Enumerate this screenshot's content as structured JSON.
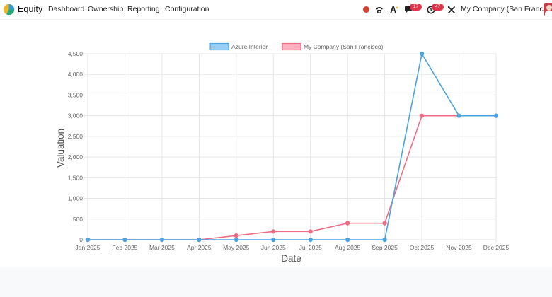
{
  "navbar": {
    "app_name": "Equity",
    "menu": [
      "Dashboard",
      "Ownership",
      "Reporting",
      "Configuration"
    ],
    "messages_badge": "17",
    "activities_badge": "47",
    "company": "My Company (San Francisco)"
  },
  "chart_data": {
    "type": "line",
    "xlabel": "Date",
    "ylabel": "Valuation",
    "categories": [
      "Jan 2025",
      "Feb 2025",
      "Mar 2025",
      "Apr 2025",
      "May 2025",
      "Jun 2025",
      "Jul 2025",
      "Aug 2025",
      "Sep 2025",
      "Oct 2025",
      "Nov 2025",
      "Dec 2025"
    ],
    "ylim": [
      0,
      4500
    ],
    "yticks": [
      0,
      500,
      1000,
      1500,
      2000,
      2500,
      3000,
      3500,
      4000,
      4500
    ],
    "ytick_labels": [
      "0",
      "500",
      "1,000",
      "1,500",
      "2,000",
      "2,500",
      "3,000",
      "3,500",
      "4,000",
      "4,500"
    ],
    "grid": true,
    "legend_position": "top-center",
    "series": [
      {
        "name": "Azure Interior",
        "color": "#4aa3df",
        "fill": "#9ad0f5",
        "values": [
          0,
          0,
          0,
          0,
          0,
          0,
          0,
          0,
          0,
          4500,
          3000,
          3000
        ]
      },
      {
        "name": "My Company (San Francisco)",
        "color": "#ee6c84",
        "fill": "#ffb1c1",
        "values": [
          0,
          0,
          0,
          0,
          100,
          200,
          200,
          400,
          400,
          3000,
          3000,
          3000
        ]
      }
    ]
  }
}
